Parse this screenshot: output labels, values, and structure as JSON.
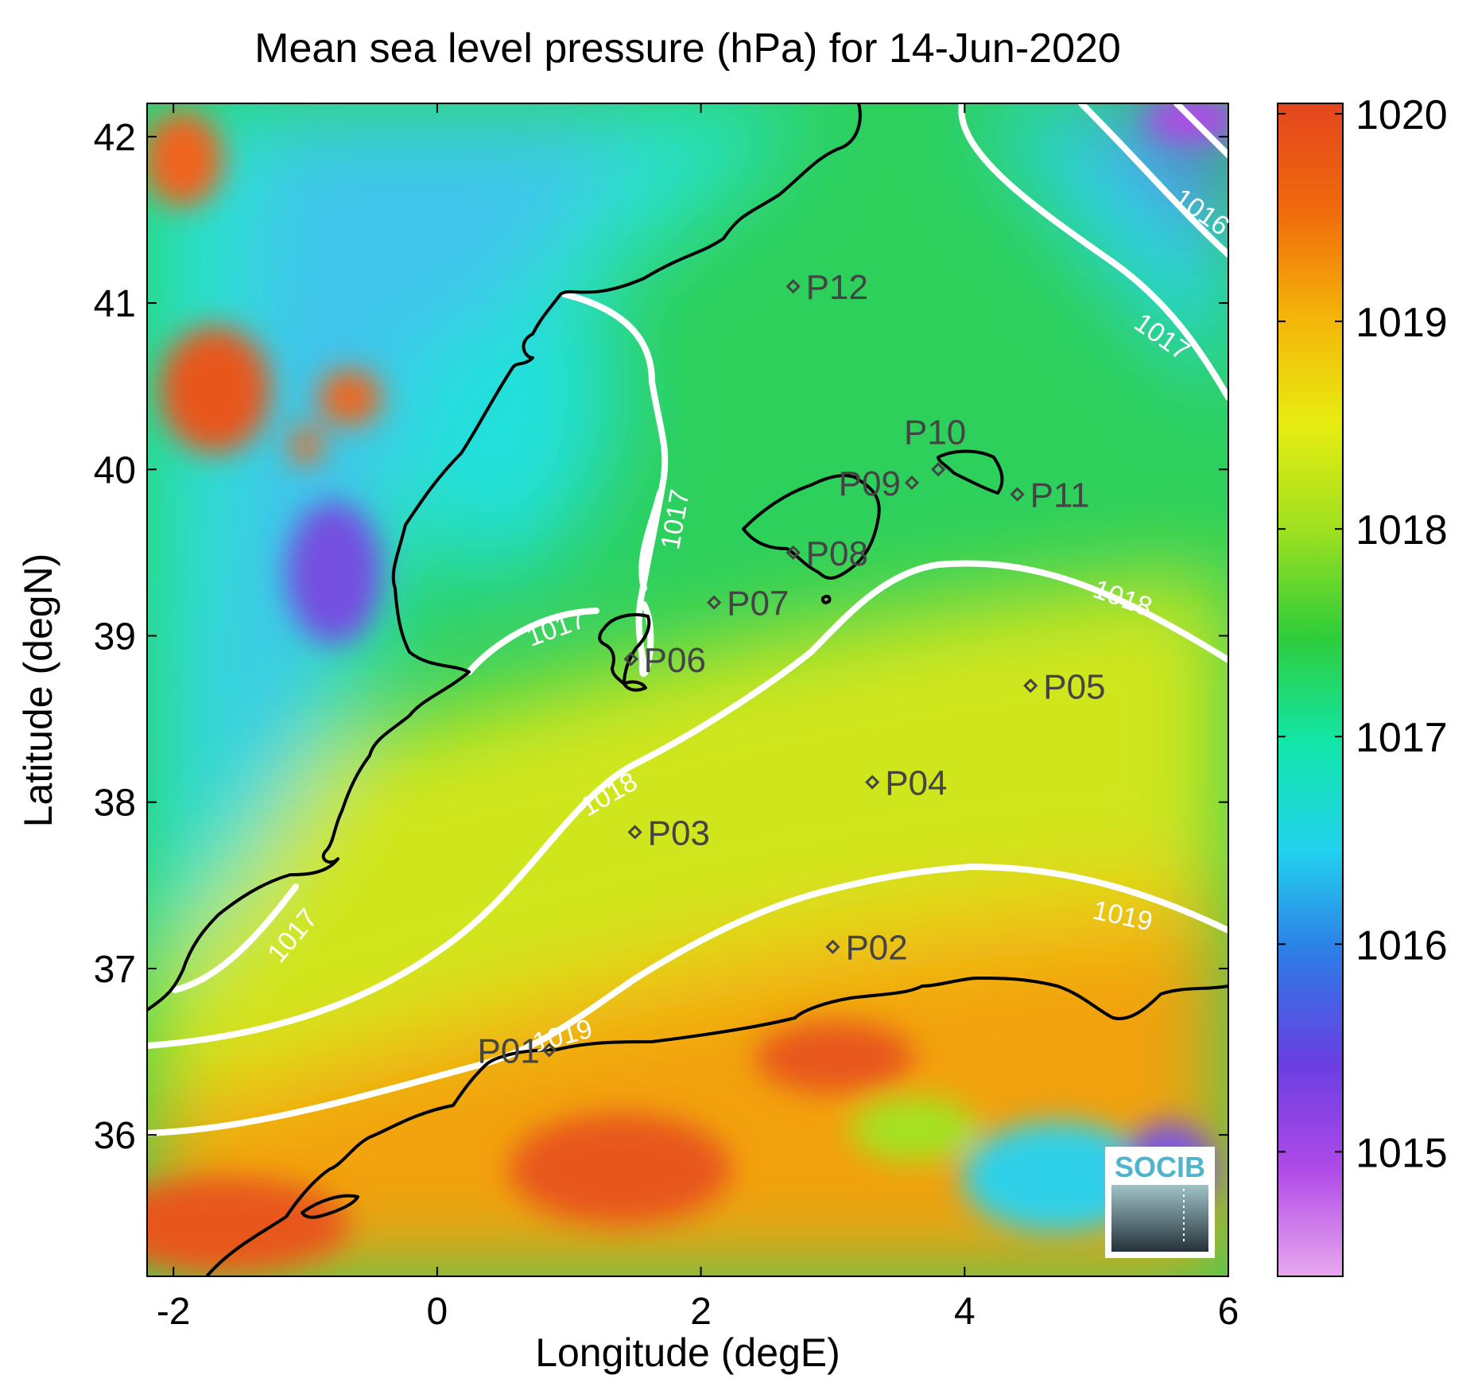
{
  "title": "Mean sea level pressure (hPa) for 14-Jun-2020",
  "map": {
    "xlabel": "Longitude (degE)",
    "ylabel": "Latitude (degN)",
    "xlim": [
      -2.2,
      6
    ],
    "ylim": [
      35.15,
      42.2
    ],
    "x_ticks": [
      {
        "value": -2,
        "label": "-2"
      },
      {
        "value": 0,
        "label": "0"
      },
      {
        "value": 2,
        "label": "2"
      },
      {
        "value": 4,
        "label": "4"
      },
      {
        "value": 6,
        "label": "6"
      }
    ],
    "y_ticks": [
      {
        "value": 36,
        "label": "36"
      },
      {
        "value": 37,
        "label": "37"
      },
      {
        "value": 38,
        "label": "38"
      },
      {
        "value": 39,
        "label": "39"
      },
      {
        "value": 40,
        "label": "40"
      },
      {
        "value": 41,
        "label": "41"
      },
      {
        "value": 42,
        "label": "42"
      }
    ]
  },
  "colorbar": {
    "range": [
      1014.4,
      1020.05
    ],
    "ticks": [
      {
        "value": 1015,
        "label": "1015"
      },
      {
        "value": 1016,
        "label": "1016"
      },
      {
        "value": 1017,
        "label": "1017"
      },
      {
        "value": 1018,
        "label": "1018"
      },
      {
        "value": 1019,
        "label": "1019"
      },
      {
        "value": 1020,
        "label": "1020"
      }
    ],
    "colors": [
      "#e8a8ee",
      "#b04ae8",
      "#6a3ee0",
      "#2e7ae6",
      "#22d2ee",
      "#12e6a8",
      "#2ecc3a",
      "#9ee020",
      "#e8ec10",
      "#f4b40a",
      "#f06a0c",
      "#e4461e"
    ]
  },
  "stations": [
    {
      "id": "P01",
      "lon": 0.85,
      "lat": 36.51
    },
    {
      "id": "P02",
      "lon": 3.0,
      "lat": 37.13
    },
    {
      "id": "P03",
      "lon": 1.5,
      "lat": 37.82
    },
    {
      "id": "P04",
      "lon": 3.3,
      "lat": 38.12
    },
    {
      "id": "P05",
      "lon": 4.5,
      "lat": 38.7
    },
    {
      "id": "P06",
      "lon": 1.47,
      "lat": 38.86
    },
    {
      "id": "P07",
      "lon": 2.1,
      "lat": 39.2
    },
    {
      "id": "P08",
      "lon": 2.7,
      "lat": 39.5
    },
    {
      "id": "P09",
      "lon": 3.6,
      "lat": 39.92
    },
    {
      "id": "P10",
      "lon": 3.8,
      "lat": 40.0
    },
    {
      "id": "P11",
      "lon": 4.4,
      "lat": 39.85
    },
    {
      "id": "P12",
      "lon": 2.7,
      "lat": 41.1
    }
  ],
  "contour_labels": [
    {
      "text": "1016",
      "lon": 5.8,
      "lat": 41.55,
      "angle": 35
    },
    {
      "text": "1017",
      "lon": 5.5,
      "lat": 40.8,
      "angle": 35
    },
    {
      "text": "1017",
      "lon": 1.8,
      "lat": 39.7,
      "angle": -80
    },
    {
      "text": "1017",
      "lon": 0.9,
      "lat": 39.05,
      "angle": -20
    },
    {
      "text": "1017",
      "lon": -1.1,
      "lat": 37.2,
      "angle": -50
    },
    {
      "text": "1018",
      "lon": 5.2,
      "lat": 39.23,
      "angle": 20
    },
    {
      "text": "1018",
      "lon": 1.3,
      "lat": 38.05,
      "angle": -30
    },
    {
      "text": "1019",
      "lon": 5.2,
      "lat": 37.32,
      "angle": 12
    },
    {
      "text": "1019",
      "lon": 0.95,
      "lat": 36.6,
      "angle": -15
    }
  ],
  "logo": {
    "text": "SOCIB"
  }
}
